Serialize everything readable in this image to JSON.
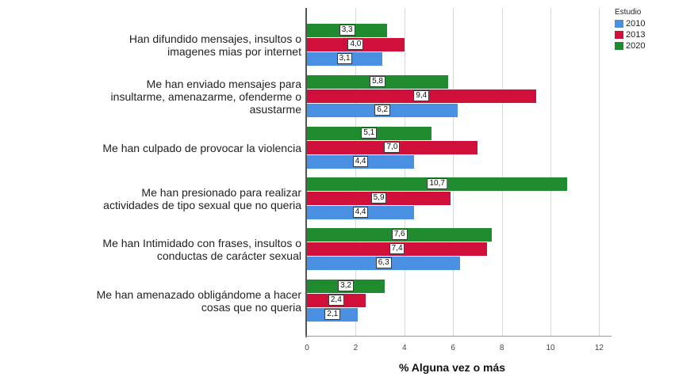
{
  "chart_data": {
    "type": "bar",
    "orientation": "horizontal",
    "title": "",
    "xlabel": "% Alguna vez o más",
    "ylabel": "",
    "xlim": [
      0,
      12
    ],
    "xticks": [
      "0",
      "2",
      "4",
      "6",
      "8",
      "10",
      "12"
    ],
    "grid": true,
    "legend_title": "Estudio",
    "legend_position": "top-right",
    "categories": [
      "Han difundido mensajes, insultos o imagenes mias por internet",
      "Me han enviado mensajes para insultarme, amenazarme, ofenderme o asustarme",
      "Me han culpado de provocar la violencia",
      "Me han presionado para realizar actividades de tipo sexual que no queria",
      "Me han Intimidado con frases, insultos o conductas de carácter sexual",
      "Me han amenazado obligándome a hacer cosas que no queria"
    ],
    "series": [
      {
        "name": "2010",
        "color": "#4a90e2",
        "values": [
          3.1,
          6.2,
          4.4,
          4.4,
          6.3,
          2.1
        ],
        "labels": [
          "3,1",
          "6,2",
          "4,4",
          "4,4",
          "6,3",
          "2,1"
        ]
      },
      {
        "name": "2013",
        "color": "#d0103a",
        "values": [
          4.0,
          9.4,
          7.0,
          5.9,
          7.4,
          2.4
        ],
        "labels": [
          "4,0",
          "9,4",
          "7,0",
          "5,9",
          "7,4",
          "2,4"
        ]
      },
      {
        "name": "2020",
        "color": "#1f8a2e",
        "values": [
          3.3,
          5.8,
          5.1,
          10.7,
          7.6,
          3.2
        ],
        "labels": [
          "3,3",
          "5,8",
          "5,1",
          "10,7",
          "7,6",
          "3,2"
        ]
      }
    ]
  },
  "category_lines": [
    [
      "Han difundido mensajes, insultos o",
      "imagenes mias por internet"
    ],
    [
      "Me han enviado mensajes para",
      "insultarme, amenazarme, ofenderme o",
      "asustarme"
    ],
    [
      "Me han culpado de provocar la violencia"
    ],
    [
      "Me han presionado para realizar",
      "actividades de tipo sexual que no queria"
    ],
    [
      "Me han Intimidado con frases, insultos o",
      "conductas de carácter sexual"
    ],
    [
      "Me han amenazado obligándome a hacer",
      "cosas que no queria"
    ]
  ]
}
